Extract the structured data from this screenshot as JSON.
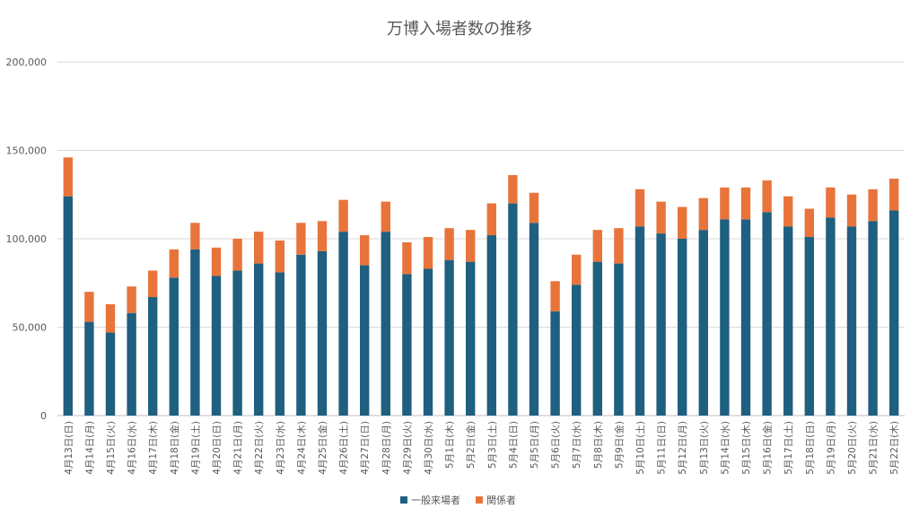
{
  "chart_data": {
    "type": "bar",
    "stacked": true,
    "title": "万博入場者数の推移",
    "xlabel": "",
    "ylabel": "",
    "ylim": [
      0,
      200000
    ],
    "yticks": [
      "0",
      "50,000",
      "100,000",
      "150,000",
      "200,000"
    ],
    "grid": true,
    "legend_position": "bottom",
    "categories": [
      "4月13日(日)",
      "4月14日(月)",
      "4月15日(火)",
      "4月16日(水)",
      "4月17日(木)",
      "4月18日(金)",
      "4月19日(土)",
      "4月20日(日)",
      "4月21日(月)",
      "4月22日(火)",
      "4月23日(水)",
      "4月24日(木)",
      "4月25日(金)",
      "4月26日(土)",
      "4月27日(日)",
      "4月28日(月)",
      "4月29日(火)",
      "4月30日(水)",
      "5月1日(木)",
      "5月2日(金)",
      "5月3日(土)",
      "5月4日(日)",
      "5月5日(月)",
      "5月6日(火)",
      "5月7日(水)",
      "5月8日(木)",
      "5月9日(金)",
      "5月10日(土)",
      "5月11日(日)",
      "5月12日(月)",
      "5月13日(火)",
      "5月14日(水)",
      "5月15日(木)",
      "5月16日(金)",
      "5月17日(土)",
      "5月18日(日)",
      "5月19日(月)",
      "5月20日(火)",
      "5月21日(水)",
      "5月22日(木)"
    ],
    "series": [
      {
        "name": "一般来場者",
        "color": "#1f5f7f",
        "values": [
          124000,
          53000,
          47000,
          58000,
          67000,
          78000,
          94000,
          79000,
          82000,
          86000,
          81000,
          91000,
          93000,
          104000,
          85000,
          104000,
          80000,
          83000,
          88000,
          87000,
          102000,
          120000,
          109000,
          59000,
          74000,
          87000,
          86000,
          107000,
          103000,
          100000,
          105000,
          111000,
          111000,
          115000,
          107000,
          101000,
          112000,
          107000,
          110000,
          116000
        ]
      },
      {
        "name": "関係者",
        "color": "#e8743b",
        "values": [
          22000,
          17000,
          16000,
          15000,
          15000,
          16000,
          15000,
          16000,
          18000,
          18000,
          18000,
          18000,
          17000,
          18000,
          17000,
          17000,
          18000,
          18000,
          18000,
          18000,
          18000,
          16000,
          17000,
          17000,
          17000,
          18000,
          20000,
          21000,
          18000,
          18000,
          18000,
          18000,
          18000,
          18000,
          17000,
          16000,
          17000,
          18000,
          18000,
          18000
        ]
      }
    ]
  }
}
